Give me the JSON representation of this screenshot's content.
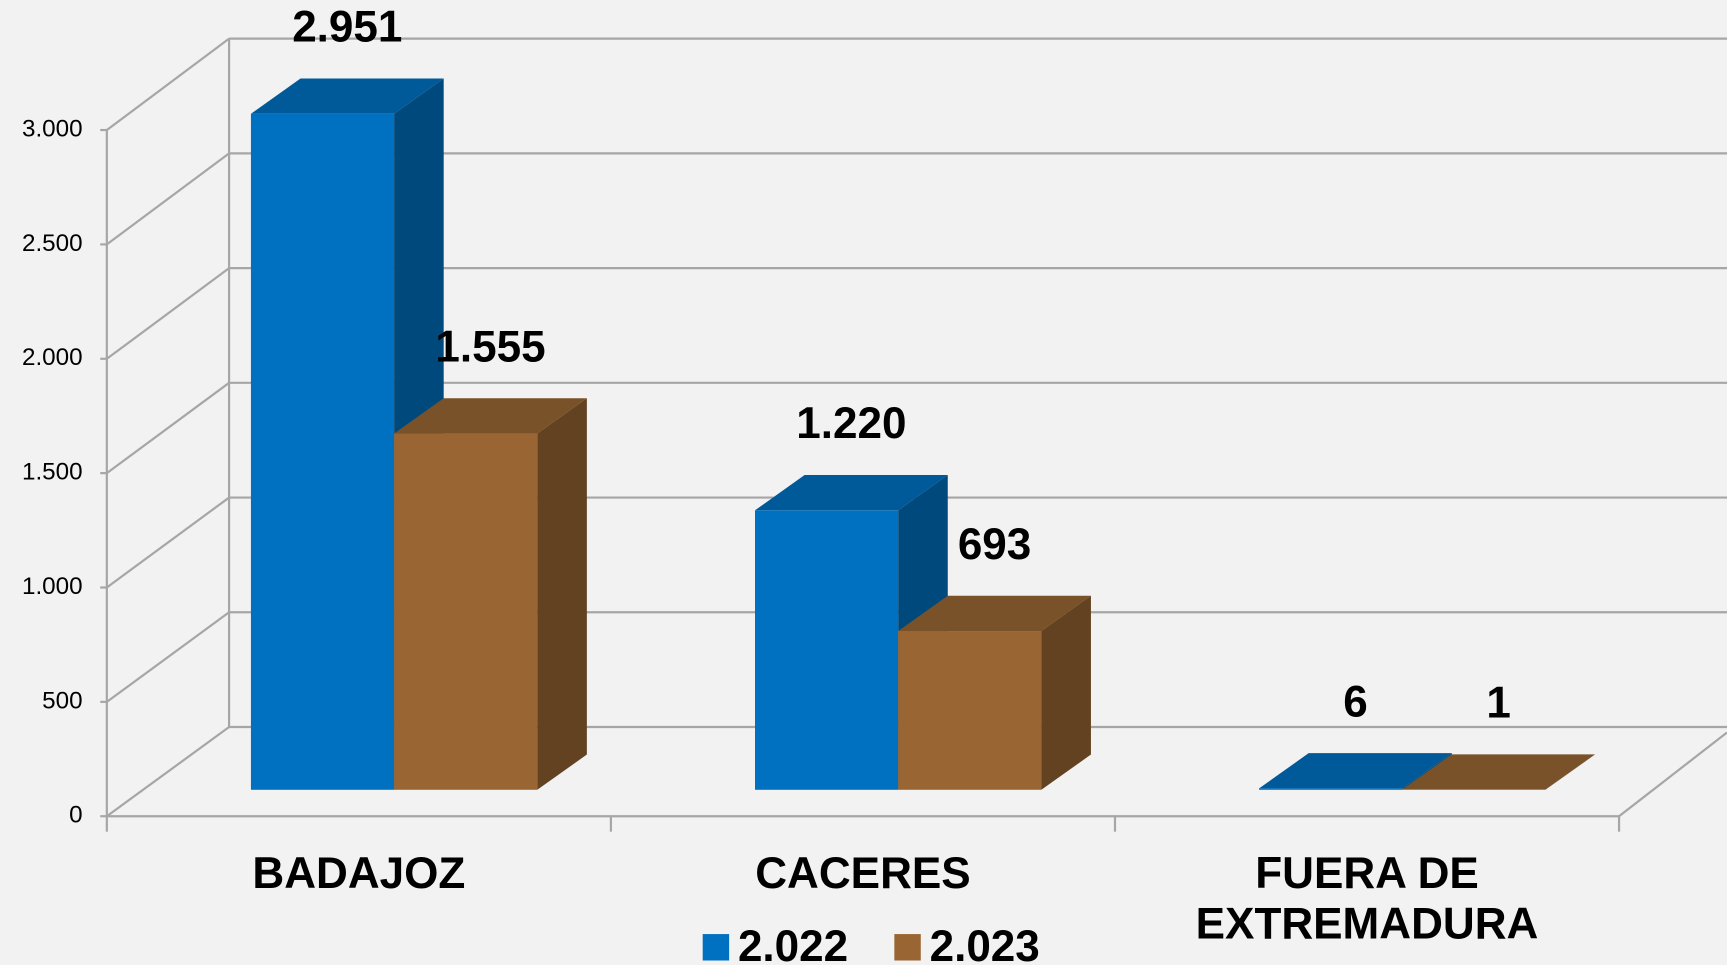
{
  "chart_data": {
    "type": "bar3d",
    "categories": [
      "BADAJOZ",
      "CACERES",
      "FUERA DE\nEXTREMADURA"
    ],
    "series": [
      {
        "name": "2.022",
        "color": "#0070c0",
        "values": [
          2951,
          1220,
          6
        ],
        "value_labels": [
          "2.951",
          "1.220",
          "6"
        ]
      },
      {
        "name": "2.023",
        "color": "#996633",
        "values": [
          1555,
          693,
          1
        ],
        "value_labels": [
          "1.555",
          "693",
          "1"
        ]
      }
    ],
    "ylim": [
      0,
      3000
    ],
    "yticks": [
      0,
      500,
      {
        "value": 1000,
        "label": "1.000"
      },
      {
        "value": 1500,
        "label": "1.500"
      },
      {
        "value": 2000,
        "label": "2.000"
      },
      {
        "value": 2500,
        "label": "2.500"
      },
      {
        "value": 3000,
        "label": "3.000"
      }
    ],
    "grid": true,
    "legend": "bottom"
  }
}
